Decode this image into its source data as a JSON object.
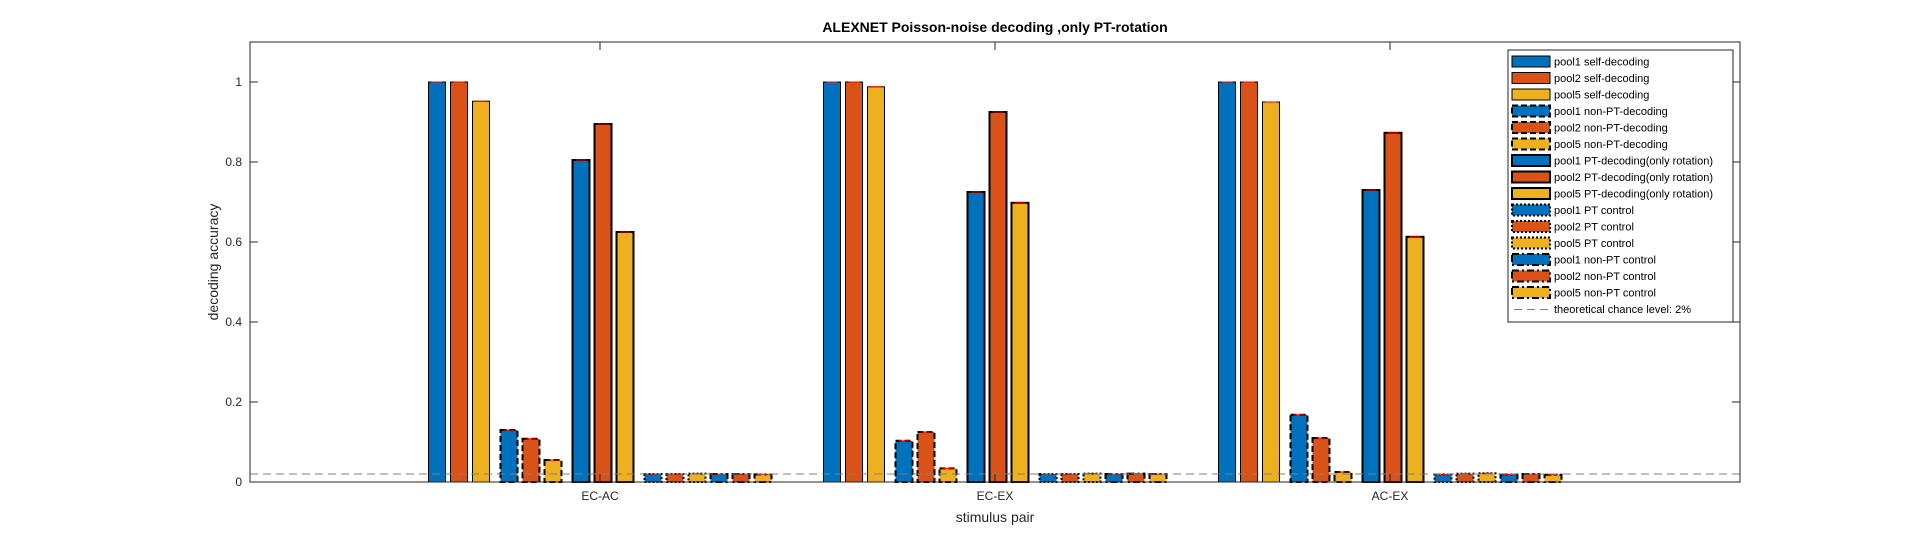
{
  "chart_data": {
    "type": "bar",
    "title": "ALEXNET Poisson-noise decoding  ,only PT-rotation",
    "xlabel": "stimulus pair",
    "ylabel": "decoding accuracy",
    "categories": [
      "EC-AC",
      "EC-EX",
      "AC-EX"
    ],
    "ylim": [
      0,
      1.1
    ],
    "yticks": [
      "0",
      "0.2",
      "0.4",
      "0.6",
      "0.8",
      "1"
    ],
    "grid": false,
    "legend_position": "top-right",
    "colors": {
      "pool1": "#0072BD",
      "pool2": "#D95319",
      "pool5": "#EDB120",
      "chance": "#808080",
      "errorbar": "#ff0000"
    },
    "series": [
      {
        "name": "pool1 self-decoding",
        "pool": "pool1",
        "edge": "solid-thin",
        "values": [
          1.0,
          1.0,
          1.0
        ]
      },
      {
        "name": "pool2 self-decoding",
        "pool": "pool2",
        "edge": "solid-thin",
        "values": [
          1.0,
          1.0,
          1.0
        ]
      },
      {
        "name": "pool5 self-decoding",
        "pool": "pool5",
        "edge": "solid-thin",
        "values": [
          0.952,
          0.988,
          0.95
        ]
      },
      {
        "name": "pool1 non-PT-decoding",
        "pool": "pool1",
        "edge": "dashed",
        "values": [
          0.13,
          0.103,
          0.168
        ]
      },
      {
        "name": "pool2 non-PT-decoding",
        "pool": "pool2",
        "edge": "dashed",
        "values": [
          0.108,
          0.125,
          0.11
        ]
      },
      {
        "name": "pool5 non-PT-decoding",
        "pool": "pool5",
        "edge": "dashed",
        "values": [
          0.055,
          0.034,
          0.025
        ]
      },
      {
        "name": "pool1 PT-decoding(only rotation)",
        "pool": "pool1",
        "edge": "solid",
        "values": [
          0.805,
          0.725,
          0.73
        ]
      },
      {
        "name": "pool2 PT-decoding(only rotation)",
        "pool": "pool2",
        "edge": "solid",
        "values": [
          0.895,
          0.925,
          0.873
        ]
      },
      {
        "name": "pool5 PT-decoding(only rotation)",
        "pool": "pool5",
        "edge": "solid",
        "values": [
          0.625,
          0.698,
          0.613
        ]
      },
      {
        "name": "pool1 PT control",
        "pool": "pool1",
        "edge": "dotted",
        "values": [
          0.02,
          0.02,
          0.019
        ]
      },
      {
        "name": "pool2 PT control",
        "pool": "pool2",
        "edge": "dotted",
        "values": [
          0.02,
          0.02,
          0.021
        ]
      },
      {
        "name": "pool5 PT control",
        "pool": "pool5",
        "edge": "dotted",
        "values": [
          0.021,
          0.021,
          0.022
        ]
      },
      {
        "name": "pool1 non-PT control",
        "pool": "pool1",
        "edge": "dashdot",
        "values": [
          0.02,
          0.02,
          0.019
        ]
      },
      {
        "name": "pool2 non-PT control",
        "pool": "pool2",
        "edge": "dashdot",
        "values": [
          0.02,
          0.021,
          0.02
        ]
      },
      {
        "name": "pool5 non-PT control",
        "pool": "pool5",
        "edge": "dashdot",
        "values": [
          0.019,
          0.02,
          0.018
        ]
      }
    ],
    "reference_line": {
      "name": "theoretical chance level: 2%",
      "value": 0.02
    }
  }
}
